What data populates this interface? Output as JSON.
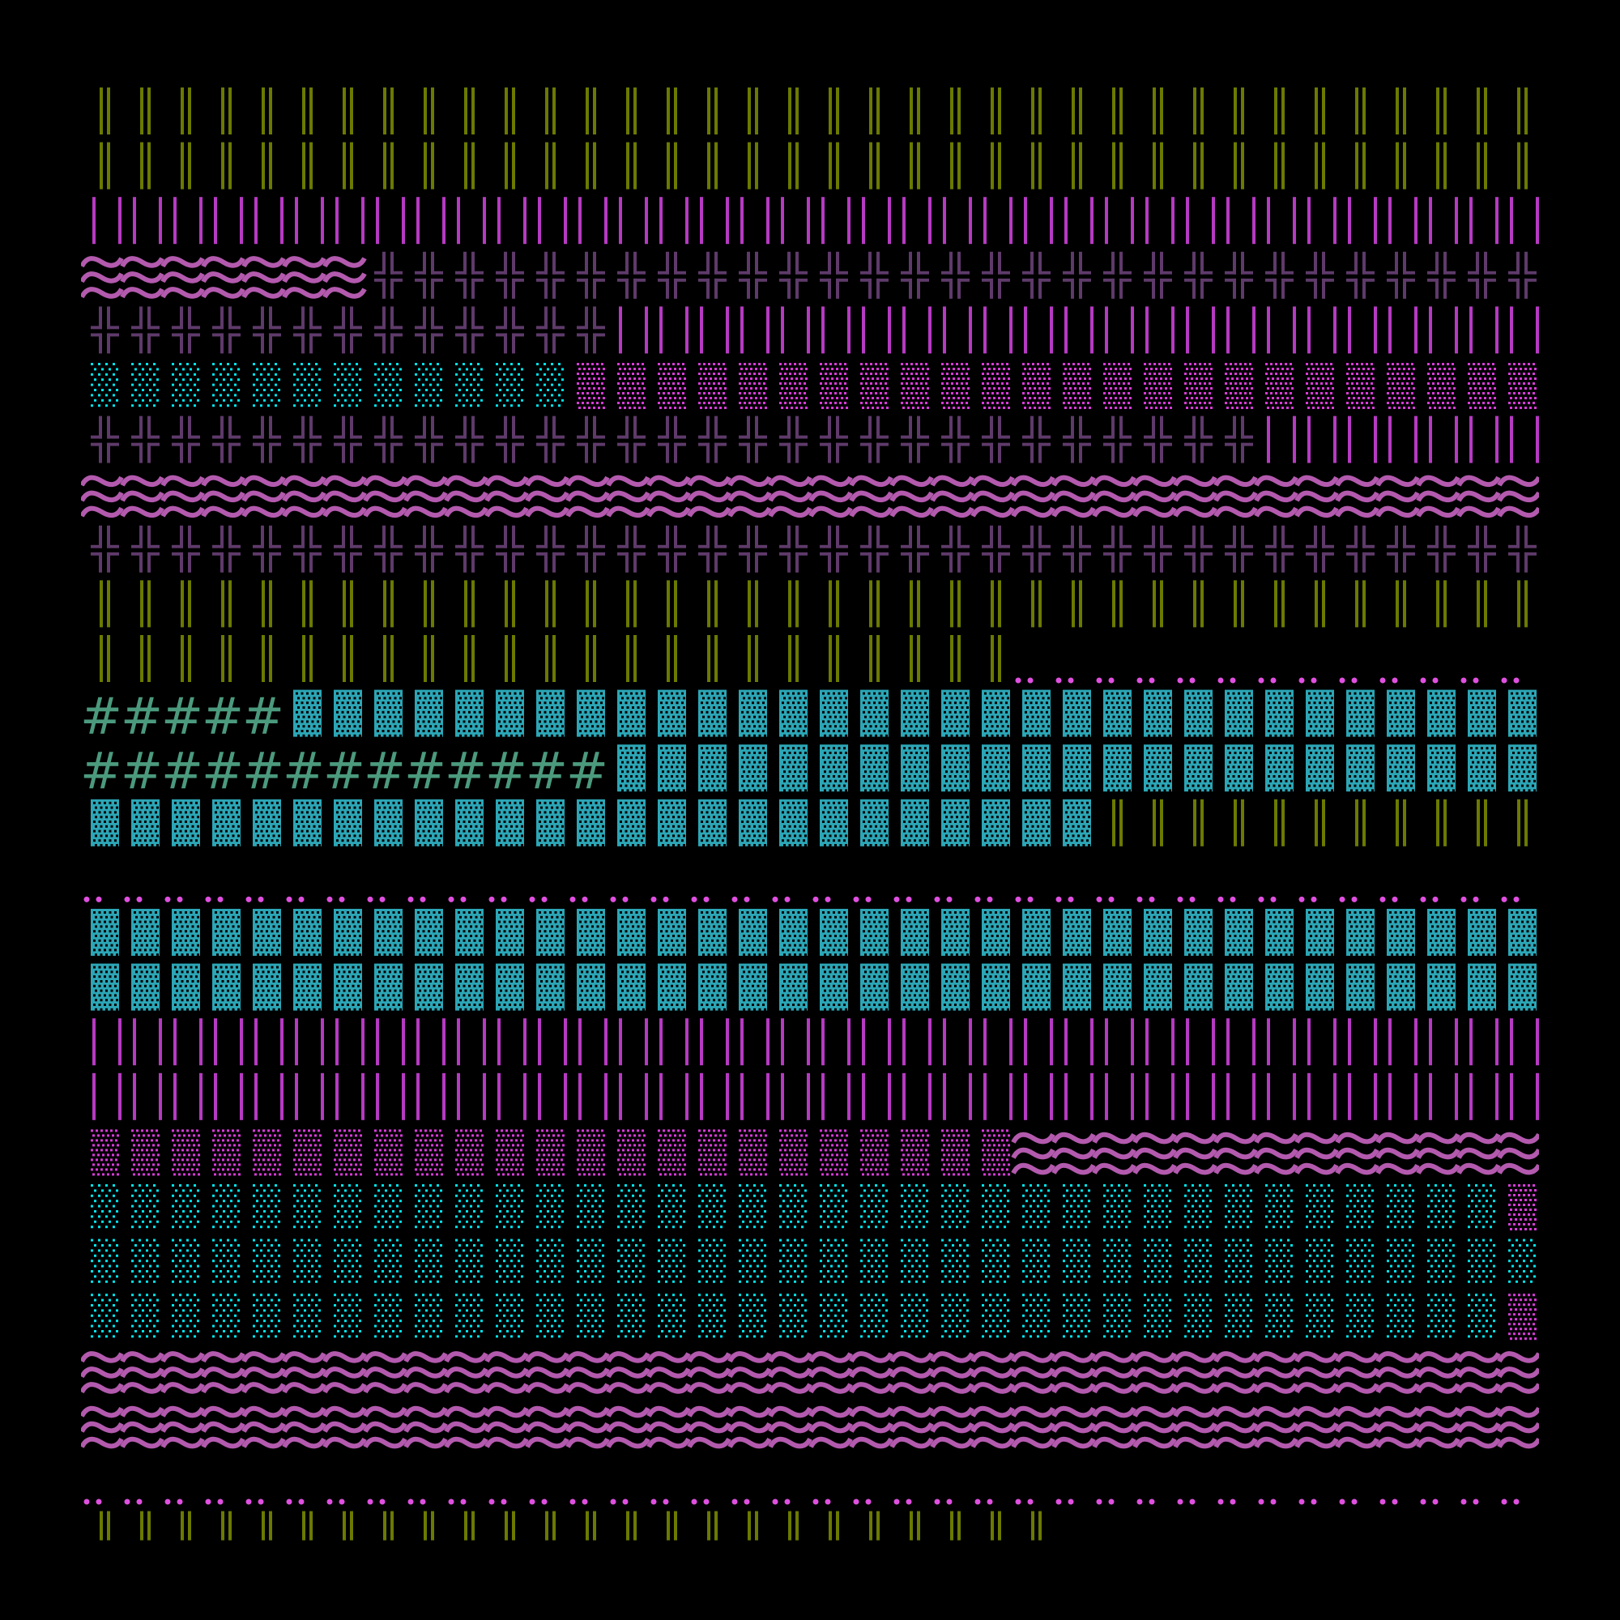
{
  "colors": {
    "background": "#000000",
    "olive_bars": "#6b7a00",
    "magenta_bars": "#b63ac2",
    "waves": "#b35aae",
    "crosses": "#5e3a6a",
    "cyan_dots": "#00e2ea",
    "magenta_dots": "#d83ad8",
    "teal_blocks": "#2ca6b6",
    "hash": "#4b9a7e",
    "pair_dots": "#e050e0"
  },
  "glyphs": {
    "hash": "#"
  },
  "rows": [
    [
      [
        "olive",
        36
      ]
    ],
    [
      [
        "olive",
        36
      ]
    ],
    [
      [
        "mbars",
        36
      ]
    ],
    [
      [
        "waves",
        7
      ],
      [
        "cross",
        29
      ]
    ],
    [
      [
        "cross",
        13
      ],
      [
        "mbars",
        23
      ]
    ],
    [
      [
        "cyan",
        12
      ],
      [
        "mdots",
        24
      ]
    ],
    [
      [
        "cross",
        29
      ],
      [
        "mbars",
        7
      ]
    ],
    [
      [
        "waves",
        36
      ]
    ],
    [
      [
        "cross",
        36
      ]
    ],
    [
      [
        "olive",
        36
      ]
    ],
    [
      [
        "olive",
        23
      ],
      [
        "pair",
        13
      ]
    ],
    [
      [
        "hash",
        5
      ],
      [
        "teal",
        31
      ]
    ],
    [
      [
        "hash",
        13
      ],
      [
        "teal",
        23
      ]
    ],
    [
      [
        "teal",
        25
      ],
      [
        "olive",
        11
      ]
    ],
    [
      [
        "pair",
        36
      ]
    ],
    [
      [
        "teal",
        36
      ]
    ],
    [
      [
        "teal",
        36
      ]
    ],
    [
      [
        "mbars",
        36
      ]
    ],
    [
      [
        "mbars",
        36
      ]
    ],
    [
      [
        "mdots",
        23
      ],
      [
        "waves",
        13
      ]
    ],
    [
      [
        "cyan",
        35
      ],
      [
        "mdots",
        1
      ]
    ],
    [
      [
        "cyan",
        36
      ]
    ],
    [
      [
        "cyan",
        35
      ],
      [
        "mdots",
        1
      ]
    ],
    [
      [
        "waves",
        36
      ]
    ],
    [
      [
        "waves",
        36
      ]
    ],
    [
      [
        "pair",
        36
      ]
    ],
    [
      [
        "olive",
        24
      ]
    ]
  ]
}
